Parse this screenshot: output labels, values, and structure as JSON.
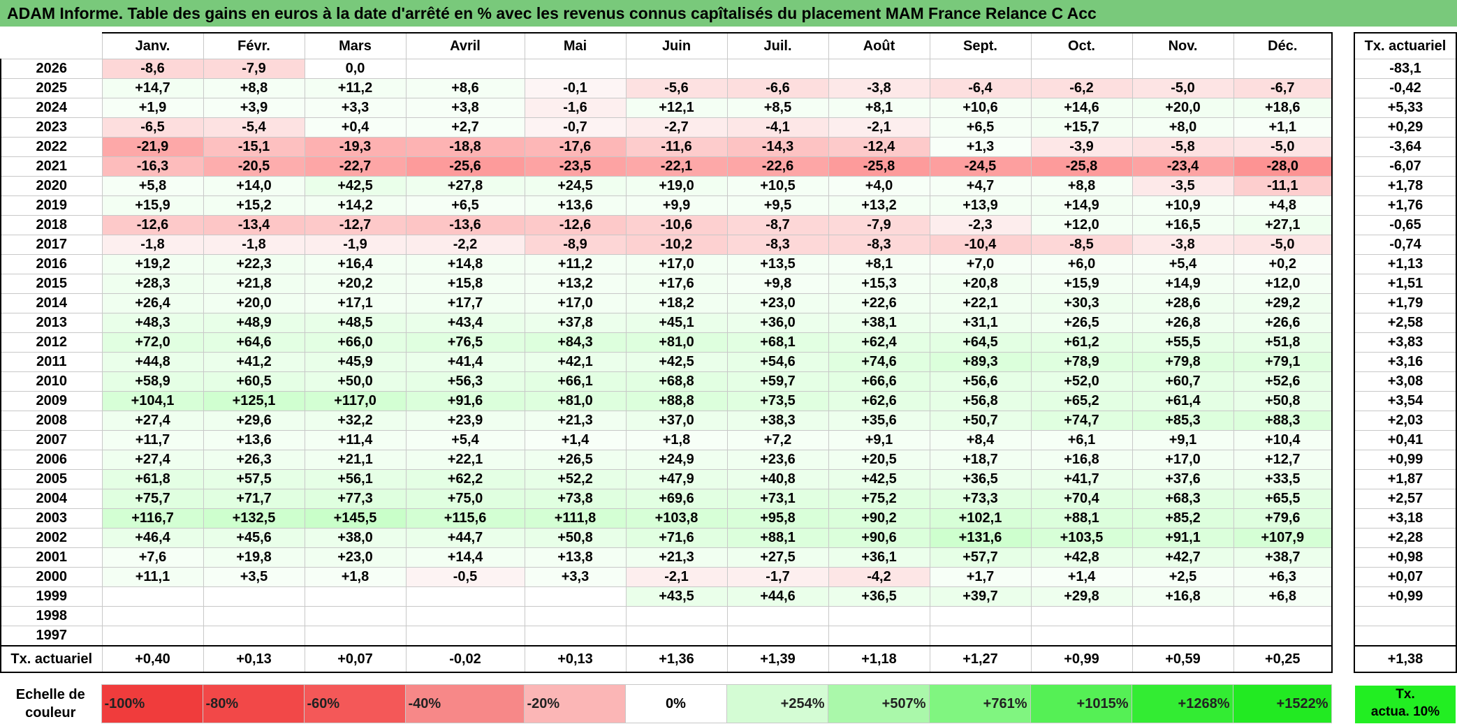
{
  "title": "ADAM Informe. Table des gains en euros à la date d'arrêté en % avec les revenus connus capîtalisés du placement MAM France Relance C Acc",
  "months": [
    "Janv.",
    "Févr.",
    "Mars",
    "Avril",
    "Mai",
    "Juin",
    "Juil.",
    "Août",
    "Sept.",
    "Oct.",
    "Nov.",
    "Déc."
  ],
  "actuarial_header": "Tx. actuariel",
  "rows": [
    {
      "year": "2026",
      "values": [
        "-8,6",
        "-7,9",
        "0,0",
        "",
        "",
        "",
        "",
        "",
        "",
        "",
        "",
        ""
      ],
      "actuarial": "-83,1"
    },
    {
      "year": "2025",
      "values": [
        "+14,7",
        "+8,8",
        "+11,2",
        "+8,6",
        "-0,1",
        "-5,6",
        "-6,6",
        "-3,8",
        "-6,4",
        "-6,2",
        "-5,0",
        "-6,7"
      ],
      "actuarial": "-0,42"
    },
    {
      "year": "2024",
      "values": [
        "+1,9",
        "+3,9",
        "+3,3",
        "+3,8",
        "-1,6",
        "+12,1",
        "+8,5",
        "+8,1",
        "+10,6",
        "+14,6",
        "+20,0",
        "+18,6"
      ],
      "actuarial": "+5,33"
    },
    {
      "year": "2023",
      "values": [
        "-6,5",
        "-5,4",
        "+0,4",
        "+2,7",
        "-0,7",
        "-2,7",
        "-4,1",
        "-2,1",
        "+6,5",
        "+15,7",
        "+8,0",
        "+1,1"
      ],
      "actuarial": "+0,29"
    },
    {
      "year": "2022",
      "values": [
        "-21,9",
        "-15,1",
        "-19,3",
        "-18,8",
        "-17,6",
        "-11,6",
        "-14,3",
        "-12,4",
        "+1,3",
        "-3,9",
        "-5,8",
        "-5,0"
      ],
      "actuarial": "-3,64"
    },
    {
      "year": "2021",
      "values": [
        "-16,3",
        "-20,5",
        "-22,7",
        "-25,6",
        "-23,5",
        "-22,1",
        "-22,6",
        "-25,8",
        "-24,5",
        "-25,8",
        "-23,4",
        "-28,0"
      ],
      "actuarial": "-6,07"
    },
    {
      "year": "2020",
      "values": [
        "+5,8",
        "+14,0",
        "+42,5",
        "+27,8",
        "+24,5",
        "+19,0",
        "+10,5",
        "+4,0",
        "+4,7",
        "+8,8",
        "-3,5",
        "-11,1"
      ],
      "actuarial": "+1,78"
    },
    {
      "year": "2019",
      "values": [
        "+15,9",
        "+15,2",
        "+14,2",
        "+6,5",
        "+13,6",
        "+9,9",
        "+9,5",
        "+13,2",
        "+13,9",
        "+14,9",
        "+10,9",
        "+4,8"
      ],
      "actuarial": "+1,76"
    },
    {
      "year": "2018",
      "values": [
        "-12,6",
        "-13,4",
        "-12,7",
        "-13,6",
        "-12,6",
        "-10,6",
        "-8,7",
        "-7,9",
        "-2,3",
        "+12,0",
        "+16,5",
        "+27,1"
      ],
      "actuarial": "-0,65"
    },
    {
      "year": "2017",
      "values": [
        "-1,8",
        "-1,8",
        "-1,9",
        "-2,2",
        "-8,9",
        "-10,2",
        "-8,3",
        "-8,3",
        "-10,4",
        "-8,5",
        "-3,8",
        "-5,0"
      ],
      "actuarial": "-0,74"
    },
    {
      "year": "2016",
      "values": [
        "+19,2",
        "+22,3",
        "+16,4",
        "+14,8",
        "+11,2",
        "+17,0",
        "+13,5",
        "+8,1",
        "+7,0",
        "+6,0",
        "+5,4",
        "+0,2"
      ],
      "actuarial": "+1,13"
    },
    {
      "year": "2015",
      "values": [
        "+28,3",
        "+21,8",
        "+20,2",
        "+15,8",
        "+13,2",
        "+17,6",
        "+9,8",
        "+15,3",
        "+20,8",
        "+15,9",
        "+14,9",
        "+12,0"
      ],
      "actuarial": "+1,51"
    },
    {
      "year": "2014",
      "values": [
        "+26,4",
        "+20,0",
        "+17,1",
        "+17,7",
        "+17,0",
        "+18,2",
        "+23,0",
        "+22,6",
        "+22,1",
        "+30,3",
        "+28,6",
        "+29,2"
      ],
      "actuarial": "+1,79"
    },
    {
      "year": "2013",
      "values": [
        "+48,3",
        "+48,9",
        "+48,5",
        "+43,4",
        "+37,8",
        "+45,1",
        "+36,0",
        "+38,1",
        "+31,1",
        "+26,5",
        "+26,8",
        "+26,6"
      ],
      "actuarial": "+2,58"
    },
    {
      "year": "2012",
      "values": [
        "+72,0",
        "+64,6",
        "+66,0",
        "+76,5",
        "+84,3",
        "+81,0",
        "+68,1",
        "+62,4",
        "+64,5",
        "+61,2",
        "+55,5",
        "+51,8"
      ],
      "actuarial": "+3,83"
    },
    {
      "year": "2011",
      "values": [
        "+44,8",
        "+41,2",
        "+45,9",
        "+41,4",
        "+42,1",
        "+42,5",
        "+54,6",
        "+74,6",
        "+89,3",
        "+78,9",
        "+79,8",
        "+79,1"
      ],
      "actuarial": "+3,16"
    },
    {
      "year": "2010",
      "values": [
        "+58,9",
        "+60,5",
        "+50,0",
        "+56,3",
        "+66,1",
        "+68,8",
        "+59,7",
        "+66,6",
        "+56,6",
        "+52,0",
        "+60,7",
        "+52,6"
      ],
      "actuarial": "+3,08"
    },
    {
      "year": "2009",
      "values": [
        "+104,1",
        "+125,1",
        "+117,0",
        "+91,6",
        "+81,0",
        "+88,8",
        "+73,5",
        "+62,6",
        "+56,8",
        "+65,2",
        "+61,4",
        "+50,8"
      ],
      "actuarial": "+3,54"
    },
    {
      "year": "2008",
      "values": [
        "+27,4",
        "+29,6",
        "+32,2",
        "+23,9",
        "+21,3",
        "+37,0",
        "+38,3",
        "+35,6",
        "+50,7",
        "+74,7",
        "+85,3",
        "+88,3"
      ],
      "actuarial": "+2,03"
    },
    {
      "year": "2007",
      "values": [
        "+11,7",
        "+13,6",
        "+11,4",
        "+5,4",
        "+1,4",
        "+1,8",
        "+7,2",
        "+9,1",
        "+8,4",
        "+6,1",
        "+9,1",
        "+10,4"
      ],
      "actuarial": "+0,41"
    },
    {
      "year": "2006",
      "values": [
        "+27,4",
        "+26,3",
        "+21,1",
        "+22,1",
        "+26,5",
        "+24,9",
        "+23,6",
        "+20,5",
        "+18,7",
        "+16,8",
        "+17,0",
        "+12,7"
      ],
      "actuarial": "+0,99"
    },
    {
      "year": "2005",
      "values": [
        "+61,8",
        "+57,5",
        "+56,1",
        "+62,2",
        "+52,2",
        "+47,9",
        "+40,8",
        "+42,5",
        "+36,5",
        "+41,7",
        "+37,6",
        "+33,5"
      ],
      "actuarial": "+1,87"
    },
    {
      "year": "2004",
      "values": [
        "+75,7",
        "+71,7",
        "+77,3",
        "+75,0",
        "+73,8",
        "+69,6",
        "+73,1",
        "+75,2",
        "+73,3",
        "+70,4",
        "+68,3",
        "+65,5"
      ],
      "actuarial": "+2,57"
    },
    {
      "year": "2003",
      "values": [
        "+116,7",
        "+132,5",
        "+145,5",
        "+115,6",
        "+111,8",
        "+103,8",
        "+95,8",
        "+90,2",
        "+102,1",
        "+88,1",
        "+85,2",
        "+79,6"
      ],
      "actuarial": "+3,18"
    },
    {
      "year": "2002",
      "values": [
        "+46,4",
        "+45,6",
        "+38,0",
        "+44,7",
        "+50,8",
        "+71,6",
        "+88,1",
        "+90,6",
        "+131,6",
        "+103,5",
        "+91,1",
        "+107,9"
      ],
      "actuarial": "+2,28"
    },
    {
      "year": "2001",
      "values": [
        "+7,6",
        "+19,8",
        "+23,0",
        "+14,4",
        "+13,8",
        "+21,3",
        "+27,5",
        "+36,1",
        "+57,7",
        "+42,8",
        "+42,7",
        "+38,7"
      ],
      "actuarial": "+0,98"
    },
    {
      "year": "2000",
      "values": [
        "+11,1",
        "+3,5",
        "+1,8",
        "-0,5",
        "+3,3",
        "-2,1",
        "-1,7",
        "-4,2",
        "+1,7",
        "+1,4",
        "+2,5",
        "+6,3"
      ],
      "actuarial": "+0,07"
    },
    {
      "year": "1999",
      "values": [
        "",
        "",
        "",
        "",
        "",
        "+43,5",
        "+44,6",
        "+36,5",
        "+39,7",
        "+29,8",
        "+16,8",
        "+6,8"
      ],
      "actuarial": "+0,99"
    },
    {
      "year": "1998",
      "values": [
        "",
        "",
        "",
        "",
        "",
        "",
        "",
        "",
        "",
        "",
        "",
        ""
      ],
      "actuarial": ""
    },
    {
      "year": "1997",
      "values": [
        "",
        "",
        "",
        "",
        "",
        "",
        "",
        "",
        "",
        "",
        "",
        ""
      ],
      "actuarial": ""
    }
  ],
  "summary": {
    "label": "Tx. actuariel",
    "values": [
      "+0,40",
      "+0,13",
      "+0,07",
      "-0,02",
      "+0,13",
      "+1,36",
      "+1,39",
      "+1,18",
      "+1,27",
      "+0,99",
      "+0,59",
      "+0,25"
    ],
    "actuarial": "+1,38"
  },
  "scale": {
    "label_line1": "Echelle de",
    "label_line2": "couleur",
    "items": [
      {
        "label": "-100%",
        "color": "#f03c3c"
      },
      {
        "label": "-80%",
        "color": "#f24848"
      },
      {
        "label": "-60%",
        "color": "#f45858"
      },
      {
        "label": "-40%",
        "color": "#f78888"
      },
      {
        "label": "-20%",
        "color": "#fbb6b6"
      },
      {
        "label": "0%",
        "color": "#ffffff"
      },
      {
        "label": "+254%",
        "color": "#d4fcd4"
      },
      {
        "label": "+507%",
        "color": "#aaf8aa"
      },
      {
        "label": "+761%",
        "color": "#80f580"
      },
      {
        "label": "+1015%",
        "color": "#55f055"
      },
      {
        "label": "+1268%",
        "color": "#33ec33"
      },
      {
        "label": "+1522%",
        "color": "#22ea22"
      }
    ],
    "actuarial_line1": "Tx.",
    "actuarial_line2": "actua. 10%",
    "actuarial_color": "#22ee22"
  }
}
